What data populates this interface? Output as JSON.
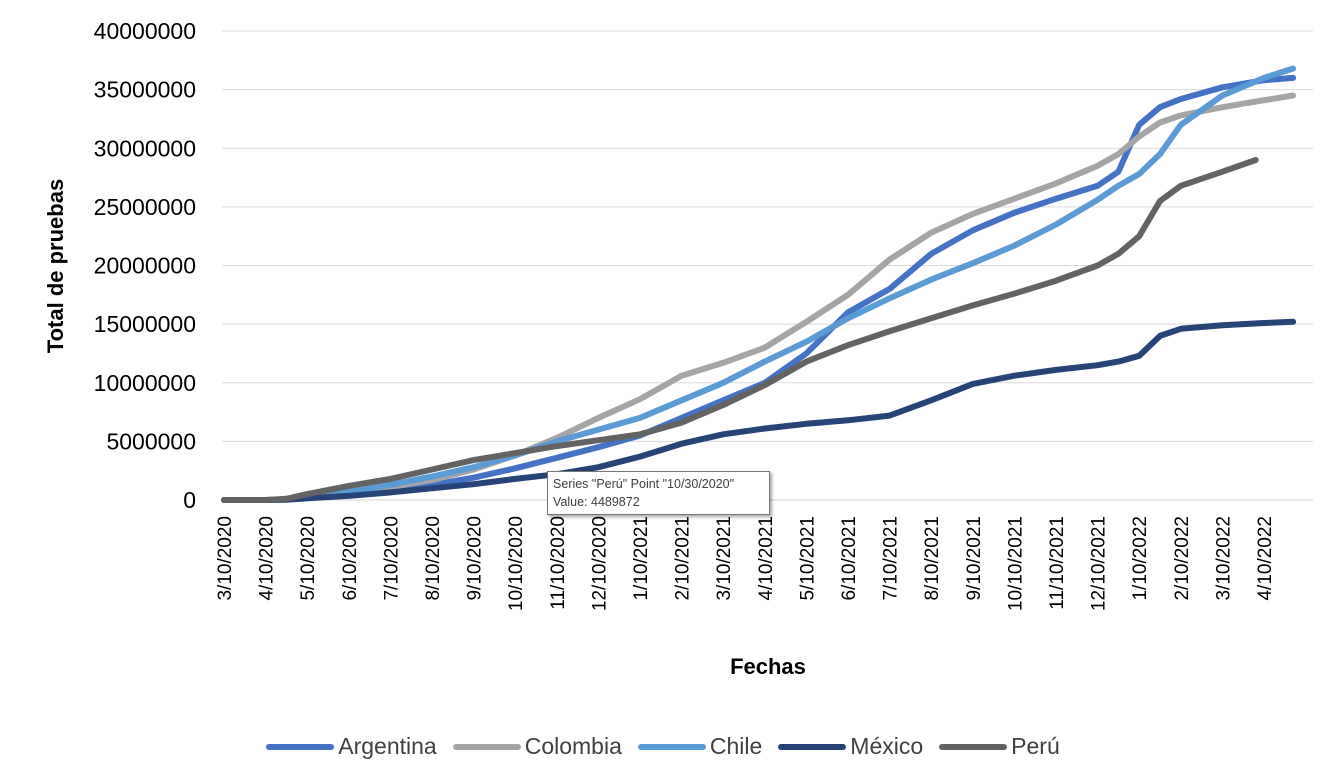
{
  "chart_data": {
    "type": "line",
    "ylabel": "Total de pruebas",
    "xlabel": "Fechas",
    "ylim": [
      0,
      40000000
    ],
    "yticks": [
      "0",
      "5000000",
      "10000000",
      "15000000",
      "20000000",
      "25000000",
      "30000000",
      "35000000",
      "40000000"
    ],
    "xticks": [
      "3/10/2020",
      "4/10/2020",
      "5/10/2020",
      "6/10/2020",
      "7/10/2020",
      "8/10/2020",
      "9/10/2020",
      "10/10/2020",
      "11/10/2020",
      "12/10/2020",
      "1/10/2021",
      "2/10/2021",
      "3/10/2021",
      "4/10/2021",
      "5/10/2021",
      "6/10/2021",
      "7/10/2021",
      "8/10/2021",
      "9/10/2021",
      "10/10/2021",
      "11/10/2021",
      "12/10/2021",
      "1/10/2022",
      "2/10/2022",
      "3/10/2022",
      "4/10/2022"
    ],
    "grid": true,
    "legend_position": "bottom",
    "series": [
      {
        "name": "Argentina",
        "color": "#4472C4",
        "points": [
          [
            0,
            0
          ],
          [
            1,
            0
          ],
          [
            1.5,
            20000
          ],
          [
            2,
            150000
          ],
          [
            3,
            400000
          ],
          [
            4,
            800000
          ],
          [
            5,
            1300000
          ],
          [
            6,
            1900000
          ],
          [
            7,
            2700000
          ],
          [
            8,
            3600000
          ],
          [
            9,
            4500000
          ],
          [
            10,
            5500000
          ],
          [
            11,
            7000000
          ],
          [
            12,
            8500000
          ],
          [
            13,
            10000000
          ],
          [
            14,
            12500000
          ],
          [
            15,
            16000000
          ],
          [
            16,
            18000000
          ],
          [
            17,
            21000000
          ],
          [
            18,
            23000000
          ],
          [
            19,
            24500000
          ],
          [
            20,
            25700000
          ],
          [
            21,
            26800000
          ],
          [
            21.5,
            28000000
          ],
          [
            22,
            32000000
          ],
          [
            22.5,
            33500000
          ],
          [
            23,
            34200000
          ],
          [
            24,
            35200000
          ],
          [
            25,
            35800000
          ],
          [
            25.7,
            36000000
          ]
        ]
      },
      {
        "name": "Colombia",
        "color": "#A5A5A5",
        "points": [
          [
            0,
            0
          ],
          [
            1,
            0
          ],
          [
            1.5,
            20000
          ],
          [
            2,
            200000
          ],
          [
            3,
            600000
          ],
          [
            4,
            1100000
          ],
          [
            5,
            1700000
          ],
          [
            6,
            2600000
          ],
          [
            7,
            3800000
          ],
          [
            8,
            5300000
          ],
          [
            9,
            7000000
          ],
          [
            10,
            8600000
          ],
          [
            11,
            10600000
          ],
          [
            12,
            11700000
          ],
          [
            13,
            13000000
          ],
          [
            14,
            15200000
          ],
          [
            15,
            17500000
          ],
          [
            16,
            20500000
          ],
          [
            17,
            22800000
          ],
          [
            18,
            24400000
          ],
          [
            19,
            25700000
          ],
          [
            20,
            27000000
          ],
          [
            21,
            28500000
          ],
          [
            21.5,
            29500000
          ],
          [
            22,
            31000000
          ],
          [
            22.5,
            32200000
          ],
          [
            23,
            32800000
          ],
          [
            24,
            33500000
          ],
          [
            25,
            34100000
          ],
          [
            25.7,
            34500000
          ]
        ]
      },
      {
        "name": "Chile",
        "color": "#5B9BD5",
        "points": [
          [
            0,
            0
          ],
          [
            1,
            0
          ],
          [
            1.5,
            30000
          ],
          [
            2,
            250000
          ],
          [
            3,
            700000
          ],
          [
            4,
            1300000
          ],
          [
            5,
            2000000
          ],
          [
            6,
            2800000
          ],
          [
            7,
            3800000
          ],
          [
            8,
            5000000
          ],
          [
            9,
            6000000
          ],
          [
            10,
            7000000
          ],
          [
            11,
            8500000
          ],
          [
            12,
            10000000
          ],
          [
            13,
            11800000
          ],
          [
            14,
            13500000
          ],
          [
            15,
            15500000
          ],
          [
            16,
            17200000
          ],
          [
            17,
            18800000
          ],
          [
            18,
            20200000
          ],
          [
            19,
            21700000
          ],
          [
            20,
            23500000
          ],
          [
            21,
            25600000
          ],
          [
            21.5,
            26800000
          ],
          [
            22,
            27800000
          ],
          [
            22.5,
            29500000
          ],
          [
            23,
            32000000
          ],
          [
            24,
            34500000
          ],
          [
            25,
            36000000
          ],
          [
            25.7,
            36800000
          ]
        ]
      },
      {
        "name": "México",
        "color": "#264478",
        "points": [
          [
            0,
            0
          ],
          [
            1,
            0
          ],
          [
            1.5,
            30000
          ],
          [
            2,
            150000
          ],
          [
            3,
            350000
          ],
          [
            4,
            650000
          ],
          [
            5,
            1000000
          ],
          [
            6,
            1350000
          ],
          [
            7,
            1800000
          ],
          [
            8,
            2200000
          ],
          [
            9,
            2800000
          ],
          [
            10,
            3700000
          ],
          [
            11,
            4800000
          ],
          [
            12,
            5600000
          ],
          [
            13,
            6100000
          ],
          [
            14,
            6500000
          ],
          [
            15,
            6800000
          ],
          [
            16,
            7200000
          ],
          [
            17,
            8500000
          ],
          [
            18,
            9900000
          ],
          [
            19,
            10600000
          ],
          [
            20,
            11100000
          ],
          [
            21,
            11500000
          ],
          [
            21.5,
            11800000
          ],
          [
            22,
            12300000
          ],
          [
            22.5,
            14000000
          ],
          [
            23,
            14600000
          ],
          [
            24,
            14900000
          ],
          [
            25,
            15100000
          ],
          [
            25.7,
            15200000
          ]
        ]
      },
      {
        "name": "Perú",
        "color": "#636363",
        "points": [
          [
            0,
            0
          ],
          [
            1,
            0
          ],
          [
            1.5,
            100000
          ],
          [
            2,
            500000
          ],
          [
            3,
            1200000
          ],
          [
            4,
            1800000
          ],
          [
            5,
            2600000
          ],
          [
            6,
            3400000
          ],
          [
            7,
            4000000
          ],
          [
            8,
            4600000
          ],
          [
            9,
            5100000
          ],
          [
            10,
            5600000
          ],
          [
            11,
            6600000
          ],
          [
            12,
            8100000
          ],
          [
            13,
            9800000
          ],
          [
            14,
            11800000
          ],
          [
            15,
            13200000
          ],
          [
            16,
            14400000
          ],
          [
            17,
            15500000
          ],
          [
            18,
            16600000
          ],
          [
            19,
            17600000
          ],
          [
            20,
            18700000
          ],
          [
            21,
            20000000
          ],
          [
            21.5,
            21000000
          ],
          [
            22,
            22500000
          ],
          [
            22.5,
            25500000
          ],
          [
            23,
            26800000
          ],
          [
            24,
            28000000
          ],
          [
            24.8,
            29000000
          ]
        ]
      }
    ]
  },
  "tooltip": {
    "line1": "Series \"Perú\" Point \"10/30/2020\"",
    "line2": "Value: 4489872"
  }
}
